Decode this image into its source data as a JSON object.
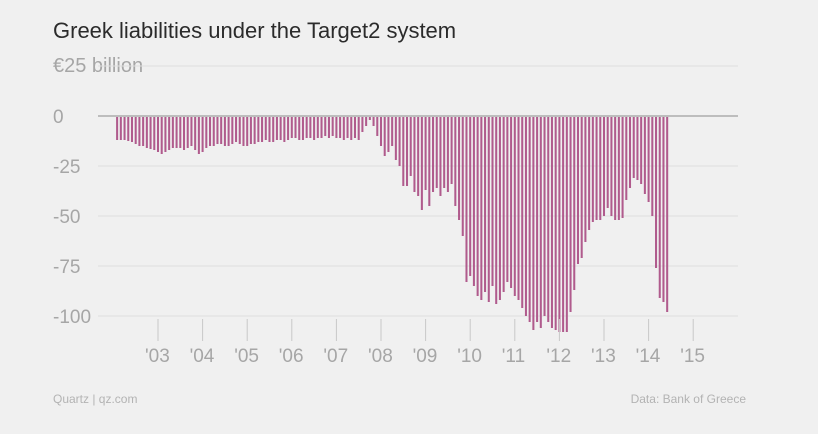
{
  "header": {
    "title": "Greek liabilities under the Target2 system",
    "subtitle": "€25 billion"
  },
  "footer": {
    "source_left": "Quartz | qz.com",
    "source_right": "Data: Bank of Greece"
  },
  "colors": {
    "bar": "#b05b8d",
    "bar_edge": "#c98ab0",
    "grid": "#dedede",
    "zero_line": "#bdbdbd",
    "background": "#f0f0f0"
  },
  "chart_data": {
    "type": "bar",
    "title": "Greek liabilities under the Target2 system",
    "ylabel": "€25 billion",
    "xlabel": "",
    "ylim": [
      -110,
      0
    ],
    "y_ticks": [
      0,
      -25,
      -50,
      -75,
      -100
    ],
    "y_tick_labels": [
      "0",
      "-25",
      "-50",
      "-75",
      "-100"
    ],
    "x_tick_labels": [
      "'03",
      "'04",
      "'05",
      "'06",
      "'07",
      "'08",
      "'09",
      "'10",
      "'11",
      "'12",
      "'13",
      "'14",
      "'15"
    ],
    "x_tick_years": [
      2003,
      2004,
      2005,
      2006,
      2007,
      2008,
      2009,
      2010,
      2011,
      2012,
      2013,
      2014,
      2015
    ],
    "start": "2002-02",
    "frequency": "monthly",
    "grid": true,
    "values": [
      -12,
      -12,
      -12,
      -12.5,
      -13,
      -14,
      -15,
      -15,
      -16,
      -16.5,
      -17,
      -18,
      -19,
      -18,
      -17,
      -16,
      -16,
      -16,
      -17,
      -16,
      -15,
      -17,
      -19,
      -18,
      -16,
      -15,
      -15,
      -14,
      -14,
      -15,
      -15,
      -14,
      -13,
      -14,
      -15,
      -15,
      -14,
      -14,
      -13,
      -13,
      -12,
      -13,
      -13,
      -12,
      -12,
      -13,
      -12,
      -11,
      -11,
      -12,
      -12,
      -11,
      -11,
      -12,
      -11,
      -11,
      -10,
      -11,
      -10,
      -11,
      -11,
      -12,
      -11,
      -12,
      -11,
      -12,
      -8,
      -5,
      -2,
      -5,
      -10,
      -15,
      -20,
      -18,
      -15,
      -22,
      -25,
      -35,
      -35,
      -30,
      -38,
      -40,
      -47,
      -37,
      -45,
      -38,
      -36,
      -40,
      -36,
      -38,
      -34,
      -45,
      -52,
      -60,
      -83,
      -80,
      -85,
      -90,
      -92,
      -88,
      -93,
      -85,
      -94,
      -92,
      -88,
      -83,
      -86,
      -90,
      -92,
      -96,
      -100,
      -103,
      -107,
      -103,
      -106,
      -100,
      -103,
      -106,
      -107,
      -108,
      -108,
      -108,
      -98,
      -87,
      -74,
      -71,
      -63,
      -57,
      -53,
      -52,
      -52,
      -50,
      -46,
      -50,
      -52,
      -52,
      -51,
      -42,
      -36,
      -31,
      -32,
      -34,
      -39,
      -43,
      -50,
      -76,
      -91,
      -93,
      -98
    ],
    "bar_width_fraction": 0.55
  }
}
